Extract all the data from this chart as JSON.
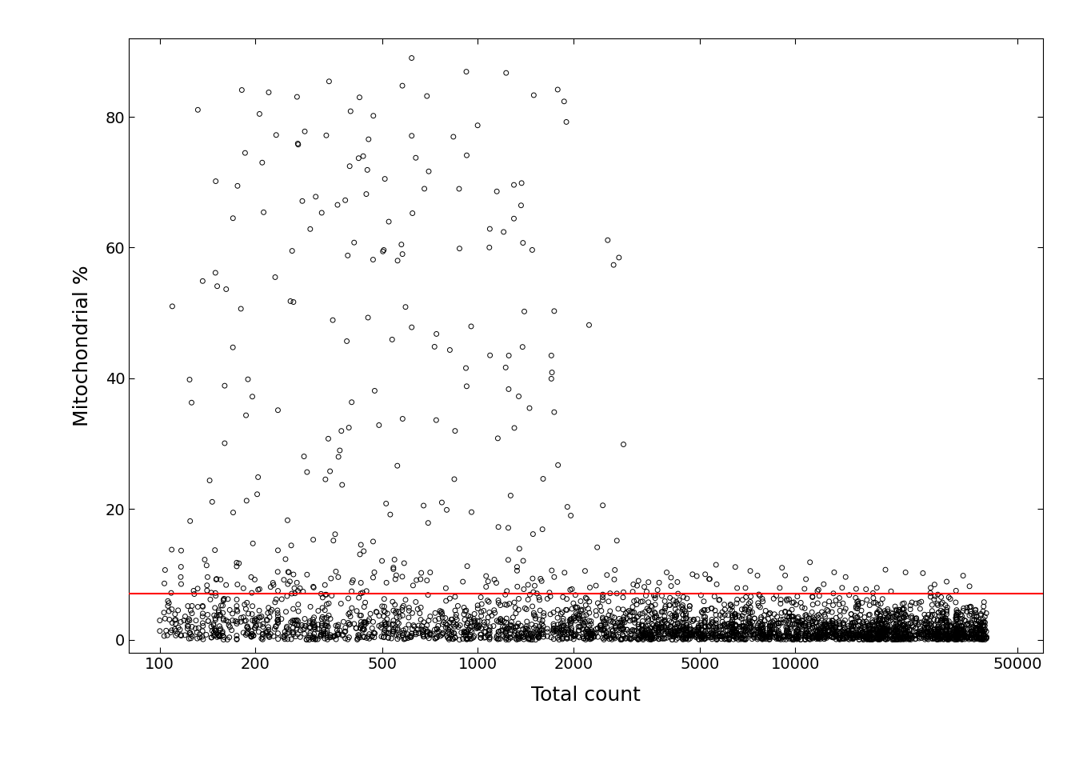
{
  "title": "",
  "xlabel": "Total count",
  "ylabel": "Mitochondrial %",
  "xlim_log": [
    80,
    60000
  ],
  "ylim": [
    -2,
    92
  ],
  "xticks": [
    100,
    200,
    500,
    1000,
    2000,
    5000,
    10000,
    50000
  ],
  "xtick_labels": [
    "100",
    "200",
    "500",
    "1000",
    "2000",
    "5000",
    "10000",
    "50000"
  ],
  "yticks": [
    0,
    20,
    40,
    60,
    80
  ],
  "threshold_y": 7.0,
  "threshold_color": "red",
  "threshold_lw": 1.5,
  "scatter_color": "black",
  "scatter_facecolor": "none",
  "scatter_size": 18,
  "scatter_lw": 0.7,
  "background_color": "#ffffff",
  "xlabel_fontsize": 18,
  "ylabel_fontsize": 18,
  "tick_fontsize": 14,
  "random_seed": 42,
  "n_points": 3500
}
